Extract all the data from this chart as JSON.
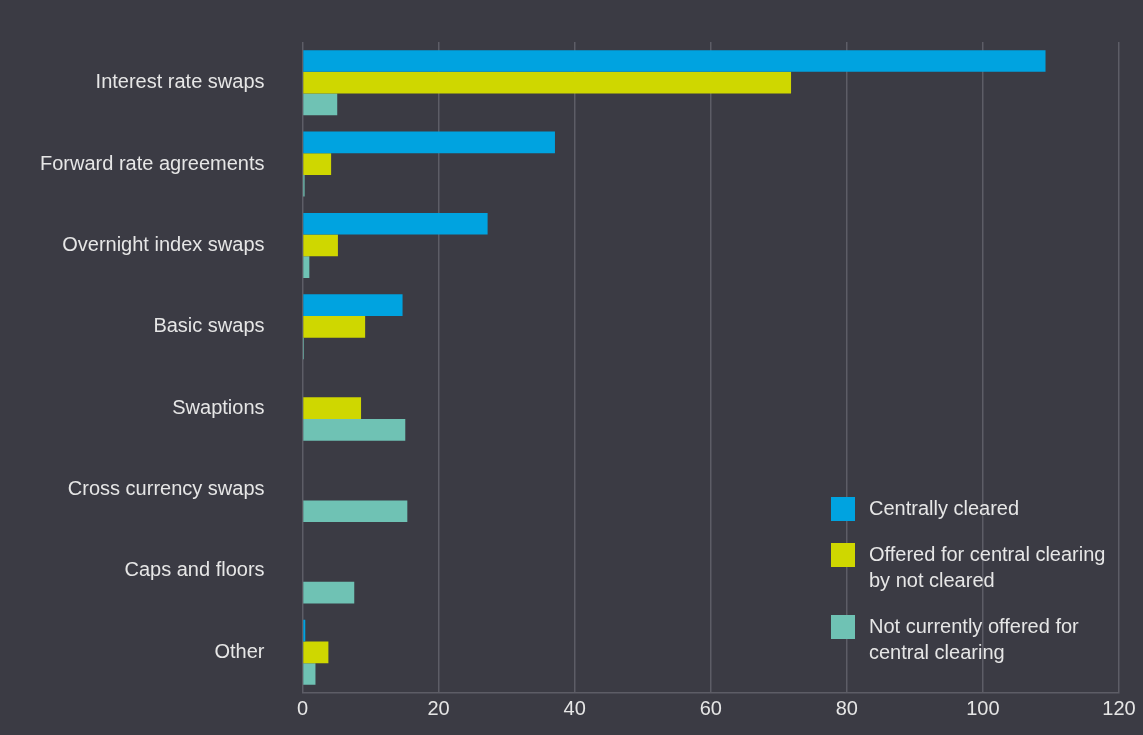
{
  "chart_data": {
    "type": "bar",
    "orientation": "horizontal",
    "categories": [
      "Interest rate swaps",
      "Forward rate agreements",
      "Overnight index swaps",
      "Basic swaps",
      "Swaptions",
      "Cross currency swaps",
      "Caps and floors",
      "Other"
    ],
    "series": [
      {
        "name": "Centrally cleared",
        "color": "#00a3e0",
        "values": [
          109.2,
          37.1,
          27.2,
          14.7,
          0,
          0,
          0,
          0.4
        ]
      },
      {
        "name": "Offered for central clearing by not cleared",
        "color": "#cfd700",
        "values": [
          71.8,
          4.2,
          5.2,
          9.2,
          8.6,
          0,
          0,
          3.8
        ]
      },
      {
        "name": "Not currently offered for central clearing",
        "color": "#6fc2b4",
        "values": [
          5.1,
          0.3,
          1.0,
          0.2,
          15.1,
          15.4,
          7.6,
          1.9
        ]
      }
    ],
    "xlim": [
      0,
      120
    ],
    "xticks": [
      0,
      20,
      40,
      60,
      80,
      100,
      120
    ],
    "grid": "x",
    "legend": "bottom right"
  }
}
